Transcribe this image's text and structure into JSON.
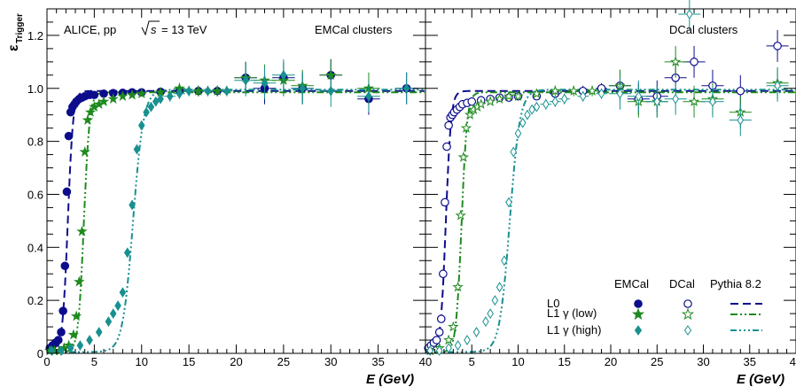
{
  "chart_data": {
    "type": "scatter",
    "ylabel_main": "ε",
    "ylabel_sub": "Trigger",
    "xlabel": "E (GeV)",
    "xlim": [
      0,
      40
    ],
    "ylim": [
      0,
      1.3
    ],
    "yticks": [
      0,
      0.2,
      0.4,
      0.6,
      0.8,
      1.0,
      1.2
    ],
    "ytick_labels": [
      "0",
      "0.2",
      "0.4",
      "0.6",
      "0.8",
      "1.0",
      "1.2"
    ],
    "xticks": [
      0,
      5,
      10,
      15,
      20,
      25,
      30,
      35,
      40
    ],
    "xtick_labels": [
      "0",
      "5",
      "10",
      "15",
      "20",
      "25",
      "30",
      "35",
      "40"
    ],
    "collision_label": "ALICE, pp",
    "energy_label": "= 13 TeV",
    "colors": {
      "L0": "#0d0d8c",
      "L1_low": "#1f8a1f",
      "L1_high": "#189090"
    },
    "panels": [
      {
        "label": "EMCal clusters",
        "fill": true,
        "series": [
          {
            "key": "L0",
            "color": "#0d0d8c",
            "x": [
              0.3,
              0.6,
              0.9,
              1.2,
              1.5,
              1.7,
              1.9,
              2.1,
              2.3,
              2.5,
              2.7,
              2.9,
              3.1,
              3.4,
              3.7,
              4.0,
              4.5,
              5,
              6,
              7,
              8,
              9,
              10,
              12,
              14,
              16,
              18,
              21,
              23,
              25,
              27,
              30,
              34,
              38
            ],
            "y": [
              0.02,
              0.03,
              0.04,
              0.05,
              0.08,
              0.16,
              0.33,
              0.61,
              0.82,
              0.91,
              0.93,
              0.94,
              0.95,
              0.96,
              0.965,
              0.97,
              0.975,
              0.975,
              0.98,
              0.982,
              0.983,
              0.985,
              0.985,
              0.987,
              0.99,
              0.99,
              0.99,
              1.04,
              1.0,
              1.04,
              1.0,
              1.05,
              0.96,
              1.0
            ]
          },
          {
            "key": "L1_low",
            "color": "#1f8a1f",
            "x": [
              0.3,
              0.8,
              1.3,
              1.8,
              2.3,
              2.8,
              3.1,
              3.4,
              3.7,
              4.0,
              4.3,
              4.6,
              5.0,
              5.5,
              6,
              7,
              8,
              9,
              10,
              12,
              14,
              16,
              18,
              21,
              23,
              25,
              27,
              30,
              34
            ],
            "y": [
              0.01,
              0.01,
              0.01,
              0.02,
              0.03,
              0.07,
              0.14,
              0.27,
              0.46,
              0.76,
              0.88,
              0.91,
              0.93,
              0.94,
              0.95,
              0.96,
              0.97,
              0.975,
              0.98,
              0.985,
              1.0,
              0.99,
              0.99,
              1.04,
              1.03,
              1.03,
              1.01,
              1.05,
              1.0
            ]
          },
          {
            "key": "L1_high",
            "color": "#189090",
            "x": [
              0.5,
              1.5,
              2.5,
              3.5,
              4.5,
              5.5,
              6.5,
              7.0,
              7.5,
              8.0,
              8.5,
              9.0,
              9.5,
              10,
              10.5,
              11,
              11.5,
              12,
              13,
              14,
              15,
              17,
              19,
              21,
              23,
              25,
              27,
              30,
              34,
              38
            ],
            "y": [
              0.01,
              0.01,
              0.02,
              0.03,
              0.05,
              0.08,
              0.12,
              0.15,
              0.18,
              0.23,
              0.38,
              0.56,
              0.77,
              0.86,
              0.91,
              0.93,
              0.95,
              0.96,
              0.97,
              0.98,
              0.99,
              0.99,
              0.99,
              1.03,
              1.02,
              1.05,
              1.0,
              0.99,
              0.97,
              1.0
            ]
          }
        ]
      },
      {
        "label": "DCal clusters",
        "fill": false,
        "series": [
          {
            "key": "L0",
            "color": "#0d0d8c",
            "x": [
              0.3,
              0.6,
              0.9,
              1.2,
              1.5,
              1.7,
              1.9,
              2.1,
              2.3,
              2.5,
              2.7,
              2.9,
              3.1,
              3.4,
              3.7,
              4.0,
              4.5,
              5,
              6,
              7,
              8,
              9,
              10,
              12,
              14,
              17,
              19,
              21,
              23,
              25,
              27,
              29,
              31,
              34,
              38
            ],
            "y": [
              0.02,
              0.03,
              0.04,
              0.05,
              0.08,
              0.13,
              0.3,
              0.57,
              0.78,
              0.86,
              0.89,
              0.9,
              0.91,
              0.92,
              0.93,
              0.94,
              0.945,
              0.95,
              0.955,
              0.96,
              0.965,
              0.965,
              0.97,
              0.97,
              0.98,
              0.99,
              1.0,
              1.01,
              0.96,
              0.97,
              1.04,
              1.1,
              1.01,
              0.99,
              1.16
            ]
          },
          {
            "key": "L1_low",
            "color": "#1f8a1f",
            "x": [
              0.5,
              1.5,
              2.5,
              3.0,
              3.5,
              3.8,
              4.1,
              4.4,
              4.8,
              5.2,
              5.6,
              6,
              7,
              8,
              9,
              10,
              12,
              14,
              16,
              18,
              21,
              23,
              25,
              27,
              29,
              31,
              34,
              38
            ],
            "y": [
              0.01,
              0.02,
              0.05,
              0.1,
              0.25,
              0.52,
              0.74,
              0.85,
              0.9,
              0.92,
              0.93,
              0.94,
              0.95,
              0.96,
              0.97,
              0.97,
              0.98,
              0.99,
              0.99,
              0.99,
              1.01,
              0.95,
              0.95,
              1.1,
              0.95,
              0.96,
              0.91,
              1.02
            ]
          },
          {
            "key": "L1_high",
            "color": "#189090",
            "x": [
              0.5,
              1.5,
              2.5,
              3.5,
              4.5,
              5.5,
              6.5,
              7.0,
              7.5,
              8.0,
              8.5,
              9.0,
              9.5,
              10,
              10.5,
              11,
              11.5,
              12,
              13,
              14,
              15,
              17,
              19,
              21,
              23,
              25,
              27,
              28.5,
              31,
              34,
              38
            ],
            "y": [
              0.01,
              0.01,
              0.02,
              0.03,
              0.05,
              0.08,
              0.12,
              0.15,
              0.2,
              0.25,
              0.35,
              0.57,
              0.76,
              0.83,
              0.87,
              0.9,
              0.92,
              0.93,
              0.94,
              0.95,
              0.96,
              0.97,
              0.98,
              0.98,
              0.97,
              0.95,
              0.96,
              1.28,
              0.95,
              0.88,
              1.01
            ]
          }
        ]
      }
    ],
    "legend": {
      "col_headers": [
        "EMCal",
        "DCal",
        "Pythia 8.2"
      ],
      "rows": [
        {
          "key": "L0",
          "label": "L0"
        },
        {
          "key": "L1_low",
          "label": "L1 γ (low)"
        },
        {
          "key": "L1_high",
          "label": "L1 γ (high)"
        }
      ]
    },
    "fits": [
      {
        "key": "L0",
        "dash": "9,5",
        "mid": 2.2,
        "width": 0.28,
        "plateau": 0.985
      },
      {
        "key": "L1_low",
        "dash": "8,3,2,3,2,3",
        "mid": 3.9,
        "width": 0.3,
        "plateau": 0.98
      },
      {
        "key": "L1_high",
        "dash": "7,3,2,3,2,3,2,3",
        "mid": 9.1,
        "width": 0.55,
        "plateau": 0.99
      }
    ]
  }
}
